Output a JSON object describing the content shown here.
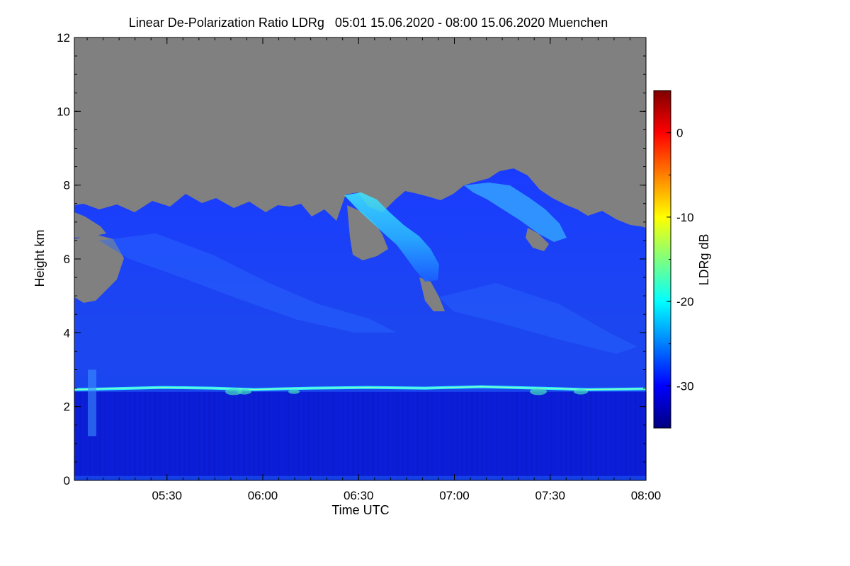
{
  "chart_data": {
    "type": "heatmap",
    "title": "Linear De-Polarization Ratio LDRg   05:01 15.06.2020 - 08:00 15.06.2020 Muenchen",
    "xlabel": "Time UTC",
    "ylabel": "Height km",
    "colorbar_label": "LDRg dB",
    "x_range": [
      "05:01",
      "08:00"
    ],
    "x_ticks": [
      "05:30",
      "06:00",
      "06:30",
      "07:00",
      "07:30",
      "08:00"
    ],
    "ylim": [
      0,
      12
    ],
    "y_ticks": [
      "0",
      "2",
      "4",
      "6",
      "8",
      "10",
      "12"
    ],
    "colorbar_range": [
      -35,
      5
    ],
    "colorbar_ticks": [
      "0",
      "-10",
      "-20",
      "-30"
    ],
    "colormap": [
      "#00007f",
      "#0000ff",
      "#007fff",
      "#00ffff",
      "#7fff7f",
      "#ffff00",
      "#ff7f00",
      "#ff0000",
      "#7f0000"
    ],
    "no_data_color": "#808080",
    "features": [
      {
        "name": "liquid cloud layer",
        "height_km": 2.5,
        "ldr_db": -22
      },
      {
        "name": "boundary layer",
        "height_range_km": [
          0,
          2.4
        ],
        "ldr_db": -33
      },
      {
        "name": "ice cloud",
        "height_range_km": [
          2.6,
          7.5
        ],
        "ldr_db": -29
      },
      {
        "name": "ice cloud top region",
        "time": "06:50",
        "height_range_km": [
          5,
          7.8
        ],
        "ldr_db": -20
      }
    ]
  }
}
